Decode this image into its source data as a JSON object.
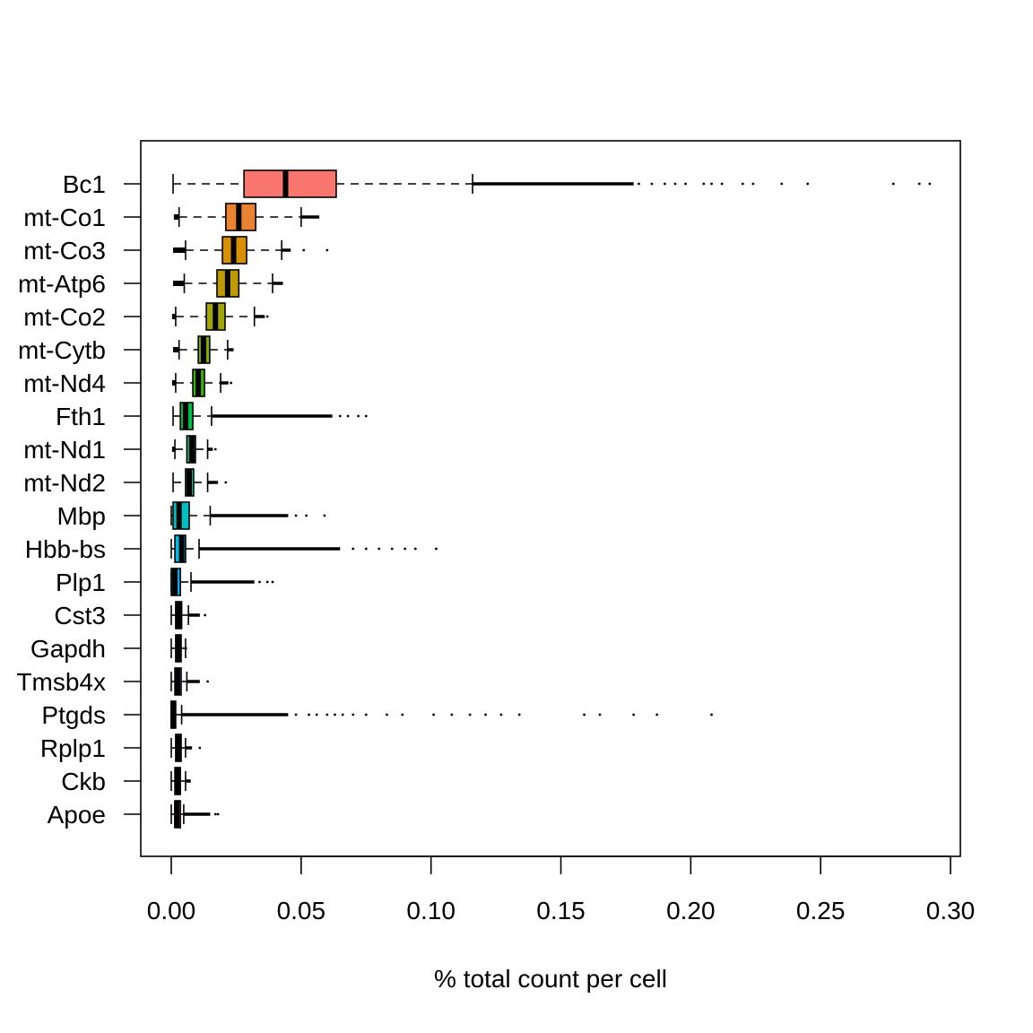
{
  "chart_data": {
    "type": "boxplot",
    "orientation": "horizontal",
    "title": "",
    "xlabel": "% total count per cell",
    "ylabel": "",
    "xlim": [
      0,
      0.3
    ],
    "xticks": [
      "0.00",
      "0.05",
      "0.10",
      "0.15",
      "0.20",
      "0.25",
      "0.30"
    ],
    "xtick_values": [
      0,
      0.05,
      0.1,
      0.15,
      0.2,
      0.25,
      0.3
    ],
    "series": [
      {
        "name": "Bc1",
        "color": "#F8766D",
        "stats": [
          0.0007,
          0.028,
          0.044,
          0.0635,
          0.116
        ],
        "dense_to": 0.178,
        "outliers": [
          0.18,
          0.185,
          0.19,
          0.194,
          0.198,
          0.205,
          0.208,
          0.212,
          0.22,
          0.224,
          0.235,
          0.245,
          0.278,
          0.288,
          0.292
        ]
      },
      {
        "name": "mt-Co1",
        "color": "#EA8331",
        "stats": [
          0.003,
          0.021,
          0.026,
          0.0325,
          0.05
        ],
        "dense_to": 0.057,
        "outliers": [],
        "low_dense_from": 0.001
      },
      {
        "name": "mt-Co3",
        "color": "#D89000",
        "stats": [
          0.0055,
          0.0197,
          0.024,
          0.029,
          0.0425
        ],
        "dense_to": 0.046,
        "outliers": [
          0.051,
          0.06
        ],
        "low_dense_from": 0.0007
      },
      {
        "name": "mt-Atp6",
        "color": "#C09B00",
        "stats": [
          0.005,
          0.0176,
          0.0217,
          0.026,
          0.039
        ],
        "dense_to": 0.043,
        "outliers": [],
        "low_dense_from": 0.0007
      },
      {
        "name": "mt-Co2",
        "color": "#A3A500",
        "stats": [
          0.0017,
          0.0135,
          0.017,
          0.0207,
          0.032
        ],
        "dense_to": 0.036,
        "outliers": [
          0.037
        ],
        "low_dense_from": 0.0003
      },
      {
        "name": "mt-Cytb",
        "color": "#7CAE00",
        "stats": [
          0.003,
          0.0104,
          0.0124,
          0.0148,
          0.0217
        ],
        "dense_to": 0.024,
        "outliers": [],
        "low_dense_from": 0.0007
      },
      {
        "name": "mt-Nd4",
        "color": "#39B600",
        "stats": [
          0.0017,
          0.0083,
          0.0104,
          0.0128,
          0.019
        ],
        "dense_to": 0.022,
        "outliers": [
          0.023
        ],
        "low_dense_from": 0.0003
      },
      {
        "name": "Fth1",
        "color": "#00BB4E",
        "stats": [
          0.0007,
          0.0035,
          0.0055,
          0.0083,
          0.0155
        ],
        "dense_to": 0.062,
        "outliers": [
          0.065,
          0.068,
          0.072,
          0.075
        ]
      },
      {
        "name": "mt-Nd1",
        "color": "#00BF7D",
        "stats": [
          0.0014,
          0.006,
          0.0079,
          0.0093,
          0.014
        ],
        "dense_to": 0.016,
        "outliers": [
          0.017
        ],
        "low_dense_from": 0.0003
      },
      {
        "name": "mt-Nd2",
        "color": "#00C1A3",
        "stats": [
          0.0007,
          0.0055,
          0.0069,
          0.0086,
          0.014
        ],
        "dense_to": 0.018,
        "outliers": [
          0.021
        ]
      },
      {
        "name": "Mbp",
        "color": "#00BFC4",
        "stats": [
          0.0,
          0.0007,
          0.003,
          0.0069,
          0.015
        ],
        "dense_to": 0.045,
        "outliers": [
          0.048,
          0.052,
          0.059
        ]
      },
      {
        "name": "Hbb-bs",
        "color": "#00BAE0",
        "stats": [
          0.0,
          0.0014,
          0.004,
          0.0055,
          0.0107
        ],
        "dense_to": 0.065,
        "outliers": [
          0.07,
          0.075,
          0.08,
          0.085,
          0.09,
          0.094,
          0.102
        ]
      },
      {
        "name": "Plp1",
        "color": "#00B0F6",
        "stats": [
          0.0,
          0.0,
          0.0014,
          0.0035,
          0.0076
        ],
        "dense_to": 0.032,
        "outliers": [
          0.034,
          0.037,
          0.039
        ]
      },
      {
        "name": "Cst3",
        "color": "#35A2FF",
        "stats": [
          0.0,
          0.0017,
          0.0028,
          0.004,
          0.0066
        ],
        "dense_to": 0.011,
        "outliers": [
          0.013
        ]
      },
      {
        "name": "Gapdh",
        "color": "#9590FF",
        "stats": [
          0.0,
          0.0017,
          0.0028,
          0.0038,
          0.0055
        ],
        "dense_to": 0.006,
        "outliers": []
      },
      {
        "name": "Tmsb4x",
        "color": "#C77CFF",
        "stats": [
          0.0,
          0.0014,
          0.0024,
          0.0038,
          0.006
        ],
        "dense_to": 0.011,
        "outliers": [
          0.014
        ]
      },
      {
        "name": "Ptgds",
        "color": "#E76BF3",
        "stats": [
          0.0,
          0.0,
          0.0007,
          0.0017,
          0.004
        ],
        "dense_to": 0.045,
        "outliers": [
          0.048,
          0.053,
          0.056,
          0.06,
          0.063,
          0.066,
          0.07,
          0.075,
          0.083,
          0.089,
          0.101,
          0.108,
          0.115,
          0.121,
          0.127,
          0.134,
          0.159,
          0.165,
          0.178,
          0.187,
          0.208
        ]
      },
      {
        "name": "Rplp1",
        "color": "#FA62DB",
        "stats": [
          0.0,
          0.0017,
          0.0028,
          0.0038,
          0.0055
        ],
        "dense_to": 0.008,
        "outliers": [
          0.011
        ]
      },
      {
        "name": "Ckb",
        "color": "#FF62BC",
        "stats": [
          0.0,
          0.0014,
          0.0024,
          0.0035,
          0.0055
        ],
        "dense_to": 0.0075,
        "outliers": []
      },
      {
        "name": "Apoe",
        "color": "#FF6C91",
        "stats": [
          0.0,
          0.0014,
          0.0021,
          0.0035,
          0.0048
        ],
        "dense_to": 0.015,
        "outliers": [
          0.017,
          0.018
        ]
      }
    ]
  }
}
